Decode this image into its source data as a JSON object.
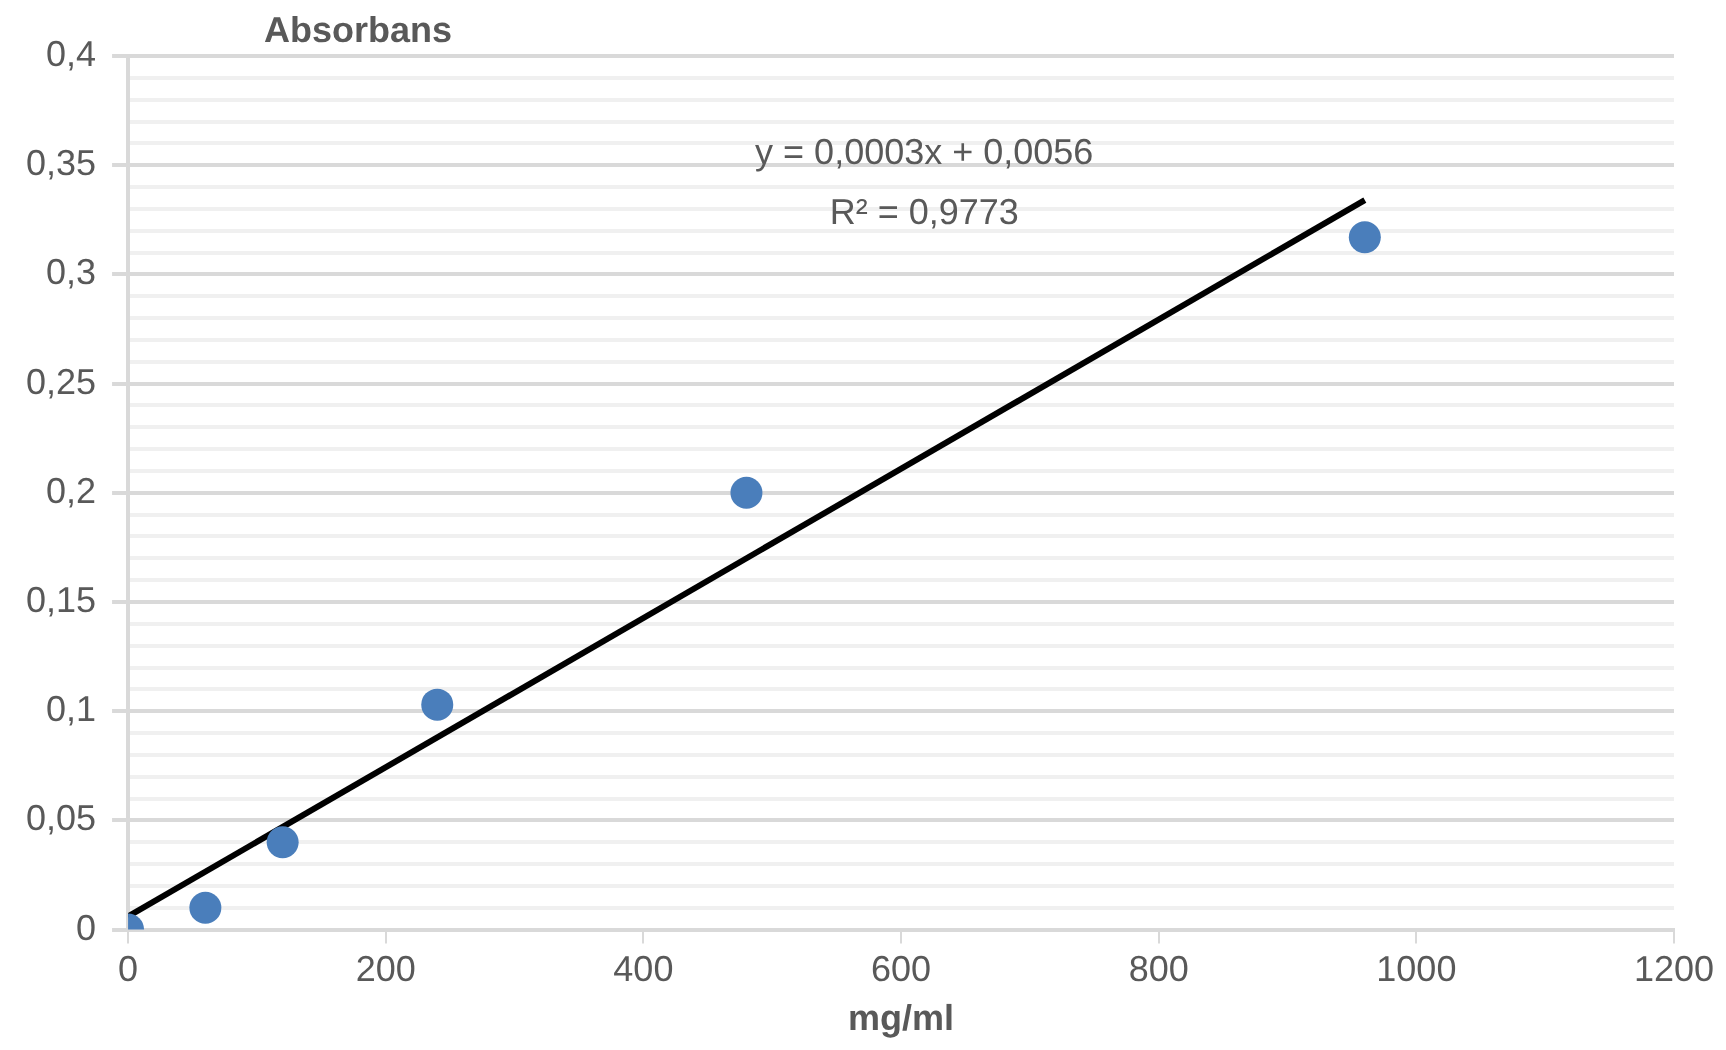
{
  "chart_data": {
    "type": "scatter",
    "ylabel": "Absorbans",
    "xlabel": "mg/ml",
    "xlim": [
      0,
      1200
    ],
    "xticks": [
      0,
      200,
      400,
      600,
      800,
      1000,
      1200
    ],
    "ylim": [
      0,
      0.4
    ],
    "yticks": [
      {
        "value": 0,
        "label": "0"
      },
      {
        "value": 0.01,
        "label": null
      },
      {
        "value": 0.02,
        "label": null
      },
      {
        "value": 0.03,
        "label": null
      },
      {
        "value": 0.04,
        "label": null
      },
      {
        "value": 0.05,
        "label": "0,05"
      },
      {
        "value": 0.06,
        "label": null
      },
      {
        "value": 0.07,
        "label": null
      },
      {
        "value": 0.08,
        "label": null
      },
      {
        "value": 0.09,
        "label": null
      },
      {
        "value": 0.1,
        "label": "0,1"
      },
      {
        "value": 0.11,
        "label": null
      },
      {
        "value": 0.12,
        "label": null
      },
      {
        "value": 0.13,
        "label": null
      },
      {
        "value": 0.14,
        "label": null
      },
      {
        "value": 0.15,
        "label": "0,15"
      },
      {
        "value": 0.16,
        "label": null
      },
      {
        "value": 0.17,
        "label": null
      },
      {
        "value": 0.18,
        "label": null
      },
      {
        "value": 0.19,
        "label": null
      },
      {
        "value": 0.2,
        "label": "0,2"
      },
      {
        "value": 0.21,
        "label": null
      },
      {
        "value": 0.22,
        "label": null
      },
      {
        "value": 0.23,
        "label": null
      },
      {
        "value": 0.24,
        "label": null
      },
      {
        "value": 0.25,
        "label": "0,25"
      },
      {
        "value": 0.26,
        "label": null
      },
      {
        "value": 0.27,
        "label": null
      },
      {
        "value": 0.28,
        "label": null
      },
      {
        "value": 0.29,
        "label": null
      },
      {
        "value": 0.3,
        "label": "0,3"
      },
      {
        "value": 0.31,
        "label": null
      },
      {
        "value": 0.32,
        "label": null
      },
      {
        "value": 0.33,
        "label": null
      },
      {
        "value": 0.34,
        "label": null
      },
      {
        "value": 0.35,
        "label": "0,35"
      },
      {
        "value": 0.36,
        "label": null
      },
      {
        "value": 0.37,
        "label": null
      },
      {
        "value": 0.38,
        "label": null
      },
      {
        "value": 0.39,
        "label": null
      },
      {
        "value": 0.4,
        "label": "0,4"
      }
    ],
    "grid": "y",
    "series": [
      {
        "marker": "circle",
        "color": "#4a7ebb",
        "x": [
          0,
          60,
          120,
          240,
          480,
          960
        ],
        "values": [
          0,
          0.01,
          0.04,
          0.103,
          0.2,
          0.317
        ]
      },
      {
        "type": "line",
        "color": "#000000",
        "x": [
          0,
          960
        ],
        "values": [
          0.006,
          0.334
        ]
      }
    ],
    "annotations": [
      "y = 0,0003x + 0,0056",
      "R² = 0,9773"
    ]
  }
}
